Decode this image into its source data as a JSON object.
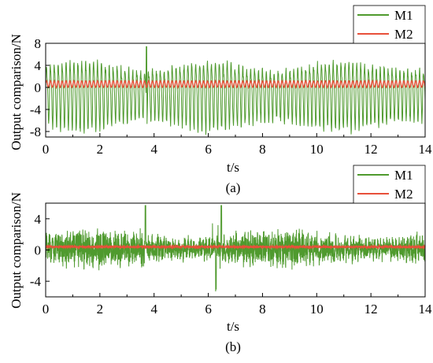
{
  "chart_data": [
    {
      "type": "line",
      "caption": "(a)",
      "xlabel": "t/s",
      "ylabel": "Output comparison/N",
      "xlim": [
        0,
        14
      ],
      "ylim": [
        -9,
        8
      ],
      "xticks": [
        0,
        2,
        4,
        6,
        8,
        10,
        12,
        14
      ],
      "yticks": [
        -8,
        -4,
        0,
        4,
        8
      ],
      "legend_position": "top-right",
      "signal_summary": "M1 oscillates at roughly 7 cycles per second with peaks of about 4 to 6 N (max ~7.5 N near t=3.7 s) and troughs of about -6 to -8 N; M2 is a small ripple between about 0 and 1.3 N around 0.6 N",
      "series": [
        {
          "name": "M1",
          "color": "#4f9a2e",
          "approx_center": -1,
          "approx_max": 7.5,
          "approx_min": -8.5
        },
        {
          "name": "M2",
          "color": "#e8503a",
          "approx_center": 0.6,
          "approx_max": 1.3,
          "approx_min": 0.0
        }
      ]
    },
    {
      "type": "line",
      "caption": "(b)",
      "xlabel": "t/s",
      "ylabel": "Output comparison/N",
      "xlim": [
        0,
        14
      ],
      "ylim": [
        -6,
        6
      ],
      "xticks": [
        0,
        2,
        4,
        6,
        8,
        10,
        12,
        14
      ],
      "yticks": [
        -4,
        0,
        4
      ],
      "legend_position": "top-right",
      "signal_summary": "M1 is a dense noisy signal mostly within about ±2.5 N with spikes up to ~5.6 N near t=3.7 s and t=6.5 s and down to ~-5.2 N; M2 is a nearly flat line at about 0.4 N",
      "series": [
        {
          "name": "M1",
          "color": "#4f9a2e",
          "approx_center": 0.2,
          "approx_max": 5.6,
          "approx_min": -5.2
        },
        {
          "name": "M2",
          "color": "#e8503a",
          "approx_center": 0.4,
          "approx_max": 0.6,
          "approx_min": 0.2
        }
      ]
    }
  ]
}
